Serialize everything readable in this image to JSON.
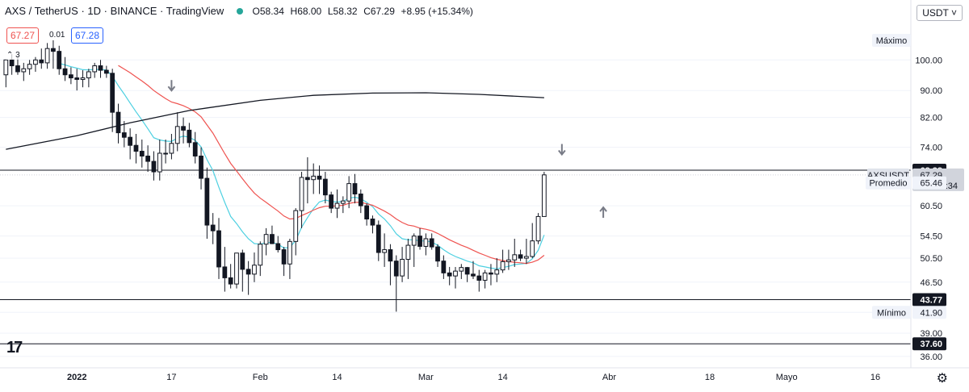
{
  "header": {
    "symbol": "AXS / TetherUS",
    "interval": "1D",
    "exchange": "BINANCE",
    "platform": "TradingView",
    "ohlc": {
      "o": "O58.34",
      "h": "H68.00",
      "l": "L58.32",
      "c": "C67.29",
      "chg": "+8.95 (+15.34%)"
    },
    "status_color": "#26a69a"
  },
  "bid": {
    "sell": "67.27",
    "spread": "0.01",
    "buy": "67.28"
  },
  "indicator_collapse": "3",
  "currency_button": "USDT",
  "gear_icon": "gear-icon",
  "logo_text": "17",
  "colors": {
    "up": "#131722",
    "down": "#131722",
    "ema_fast": "#4dd0e1",
    "ema_slow": "#ef5350",
    "sma_long": "#131722",
    "arrow": "#787b86"
  },
  "chart_data": {
    "type": "line",
    "y_scale": "log",
    "ylim": [
      35,
      115
    ],
    "y_ticks": [
      "100.00",
      "90.00",
      "82.00",
      "74.00",
      "60.50",
      "54.50",
      "50.50",
      "46.50",
      "41.90",
      "39.00",
      "36.00"
    ],
    "x_labels": [
      {
        "label": "2022",
        "date": "2022-01-01"
      },
      {
        "label": "17",
        "date": "2022-01-17"
      },
      {
        "label": "Feb",
        "date": "2022-02-01"
      },
      {
        "label": "14",
        "date": "2022-02-14"
      },
      {
        "label": "Mar",
        "date": "2022-03-01"
      },
      {
        "label": "14",
        "date": "2022-03-14"
      },
      {
        "label": "Abr",
        "date": "2022-04-01"
      },
      {
        "label": "18",
        "date": "2022-04-18"
      },
      {
        "label": "Mayo",
        "date": "2022-05-01"
      },
      {
        "label": "16",
        "date": "2022-05-16"
      }
    ],
    "x_range": [
      "2021-12-19",
      "2022-05-22"
    ],
    "candles": {
      "start": "2021-12-20",
      "o": [
        95.0,
        100.0,
        98.0,
        96.0,
        97.0,
        98.5,
        100.0,
        99.0,
        104.0,
        103.0,
        97.0,
        95.0,
        94.0,
        93.5,
        94.0,
        96.0,
        98.0,
        96.5,
        95.5,
        83.5,
        77.8,
        76.6,
        74.5,
        73.0,
        71.8,
        70.5,
        68.0,
        72.5,
        72.5,
        75.0,
        79.5,
        78.5,
        75.2,
        71.8,
        66.5,
        56.6,
        55.5,
        49.0,
        47.2,
        46.2,
        51.4,
        48.6,
        47.8,
        49.3,
        53.0,
        54.8,
        53.1,
        52.0,
        49.5,
        53.5,
        59.5,
        66.7,
        66.2,
        67.0,
        66.3,
        62.8,
        60.0,
        61.0,
        61.5,
        65.3,
        63.0,
        60.5,
        57.8,
        56.6,
        51.5,
        52.0,
        50.0,
        47.5,
        50.3,
        52.8,
        54.5,
        52.6,
        54.0,
        52.5,
        50.0,
        48.0,
        47.5,
        48.3,
        48.9,
        47.8,
        47.5,
        46.8,
        48.0,
        47.8,
        48.5,
        49.9,
        50.2,
        51.1,
        50.5,
        50.8,
        53.6,
        58.3
      ],
      "h": [
        99.0,
        102.0,
        101.0,
        99.0,
        100.0,
        101.0,
        104.0,
        106.0,
        107.0,
        105.0,
        101.0,
        97.5,
        97.0,
        96.5,
        97.0,
        99.0,
        100.0,
        98.0,
        97.0,
        86.0,
        81.0,
        79.0,
        77.5,
        76.0,
        74.5,
        73.0,
        76.0,
        76.0,
        77.5,
        83.5,
        82.0,
        80.5,
        78.0,
        74.0,
        69.0,
        59.0,
        58.0,
        52.5,
        49.5,
        51.0,
        52.0,
        50.0,
        51.5,
        53.5,
        56.0,
        56.5,
        54.5,
        52.5,
        54.0,
        60.0,
        68.0,
        71.5,
        70.0,
        69.5,
        68.0,
        63.5,
        64.0,
        62.5,
        67.0,
        67.5,
        64.0,
        61.0,
        58.5,
        57.5,
        55.0,
        53.0,
        51.0,
        52.5,
        54.0,
        55.0,
        56.0,
        55.0,
        55.0,
        53.0,
        51.0,
        49.0,
        49.0,
        49.5,
        49.0,
        50.0,
        48.5,
        48.5,
        49.5,
        50.5,
        52.0,
        52.0,
        54.0,
        52.0,
        54.0,
        57.0,
        59.0,
        68.0
      ],
      "l": [
        91.0,
        95.0,
        95.0,
        93.0,
        95.0,
        96.0,
        97.0,
        97.0,
        97.0,
        95.0,
        93.0,
        92.0,
        90.0,
        91.0,
        91.0,
        94.0,
        94.0,
        94.0,
        78.0,
        75.0,
        74.0,
        71.0,
        70.0,
        69.0,
        68.0,
        66.0,
        66.0,
        70.0,
        71.0,
        73.0,
        75.0,
        74.0,
        70.0,
        64.0,
        54.0,
        53.0,
        47.0,
        45.0,
        45.5,
        45.5,
        45.0,
        44.5,
        46.5,
        47.5,
        51.0,
        53.0,
        51.5,
        47.5,
        47.0,
        51.0,
        56.0,
        61.0,
        63.0,
        63.0,
        61.0,
        59.0,
        58.0,
        59.0,
        60.0,
        61.0,
        59.0,
        56.5,
        55.0,
        50.0,
        49.0,
        46.0,
        42.0,
        46.5,
        47.0,
        49.0,
        52.0,
        51.0,
        52.0,
        49.0,
        47.0,
        46.0,
        45.5,
        47.0,
        46.5,
        47.0,
        45.0,
        45.5,
        46.0,
        46.5,
        48.0,
        48.5,
        49.0,
        50.0,
        49.5,
        50.5,
        53.0,
        58.3
      ],
      "c": [
        100.0,
        98.0,
        96.0,
        97.0,
        98.5,
        100.0,
        99.0,
        104.0,
        103.0,
        97.0,
        95.0,
        94.0,
        93.5,
        94.0,
        96.0,
        98.0,
        96.5,
        95.5,
        83.5,
        77.8,
        76.6,
        74.5,
        73.0,
        71.8,
        70.5,
        68.0,
        72.5,
        72.5,
        75.0,
        79.5,
        78.5,
        75.2,
        71.8,
        66.5,
        56.6,
        55.5,
        49.0,
        47.2,
        46.2,
        51.4,
        48.6,
        47.8,
        49.3,
        53.0,
        54.8,
        53.1,
        52.0,
        49.5,
        53.5,
        59.5,
        66.7,
        66.2,
        67.0,
        66.3,
        62.8,
        60.0,
        61.0,
        61.5,
        65.3,
        63.0,
        60.5,
        57.8,
        56.6,
        51.5,
        52.0,
        50.0,
        47.5,
        50.3,
        52.8,
        54.5,
        52.6,
        54.0,
        52.5,
        50.0,
        48.0,
        47.5,
        48.3,
        48.9,
        47.8,
        47.5,
        46.8,
        48.0,
        47.8,
        48.5,
        49.9,
        50.2,
        51.1,
        50.5,
        50.8,
        53.6,
        58.3,
        67.29
      ]
    },
    "series": [
      {
        "type": "ma",
        "role": "fast",
        "values": [
          null,
          null,
          null,
          null,
          null,
          null,
          null,
          null,
          null,
          98.8,
          98.3,
          97.7,
          97.2,
          96.7,
          96.6,
          96.8,
          96.7,
          96.6,
          94.5,
          91.5,
          88.9,
          86.2,
          83.6,
          81.3,
          78.9,
          76.5,
          75.9,
          75.6,
          75.5,
          76.4,
          76.9,
          76.6,
          75.8,
          74.1,
          70.9,
          68.3,
          64.5,
          61.2,
          58.3,
          56.9,
          55.3,
          54.0,
          53.1,
          53.0,
          53.3,
          53.3,
          53.0,
          52.3,
          52.4,
          53.7,
          56.2,
          58.1,
          59.9,
          61.3,
          61.7,
          61.4,
          61.3,
          61.4,
          62.1,
          62.3,
          62.0,
          61.2,
          60.3,
          58.8,
          57.8,
          56.5,
          54.9,
          54.0,
          53.8,
          53.8,
          53.6,
          53.6,
          53.4,
          52.8,
          52.0,
          51.3,
          50.8,
          50.4,
          50.0,
          49.7,
          49.2,
          49.0,
          48.8,
          48.7,
          48.9,
          49.1,
          49.4,
          49.5,
          49.6,
          50.4,
          51.9,
          54.7
        ]
      },
      {
        "type": "ma",
        "role": "slow",
        "values": [
          null,
          null,
          null,
          null,
          null,
          null,
          null,
          null,
          null,
          null,
          null,
          null,
          null,
          null,
          null,
          null,
          null,
          null,
          null,
          98.1,
          96.9,
          95.7,
          94.3,
          93.0,
          91.6,
          90.0,
          88.7,
          87.5,
          86.5,
          86.0,
          85.4,
          84.6,
          83.6,
          82.2,
          79.9,
          77.7,
          75.0,
          72.4,
          70.0,
          68.2,
          66.4,
          64.7,
          63.2,
          62.1,
          61.2,
          60.3,
          59.4,
          58.4,
          57.8,
          57.9,
          58.5,
          59.0,
          59.6,
          60.1,
          60.4,
          60.4,
          60.5,
          60.6,
          61.0,
          61.2,
          61.2,
          60.9,
          60.6,
          60.0,
          59.4,
          58.7,
          57.8,
          57.1,
          56.6,
          56.4,
          56.0,
          55.8,
          55.5,
          55.0,
          54.4,
          53.8,
          53.3,
          52.8,
          52.4,
          51.9,
          51.4,
          51.0,
          50.6,
          50.3,
          50.1,
          49.9,
          49.8,
          49.7,
          49.6,
          49.8,
          50.2,
          51.0
        ]
      },
      {
        "type": "ma",
        "role": "long",
        "dates": [
          "2021-12-20",
          "2022-01-01",
          "2022-01-10",
          "2022-01-20",
          "2022-02-01",
          "2022-02-10",
          "2022-02-20",
          "2022-03-01",
          "2022-03-10",
          "2022-03-21"
        ],
        "values": [
          73.5,
          77.0,
          80.5,
          84.0,
          87.0,
          88.5,
          89.2,
          89.3,
          88.8,
          87.8
        ]
      }
    ],
    "levels": [
      {
        "value": 68.38,
        "label": "68.38",
        "style": "black"
      },
      {
        "value": 43.77,
        "label": "43.77",
        "style": "black"
      },
      {
        "value": 37.6,
        "label": "37.60",
        "style": "black"
      }
    ],
    "price_labels": {
      "symbol": {
        "name": "AXSUSDT",
        "value": "67.29",
        "countdown": "08:13:34"
      },
      "average": {
        "name": "Promedio",
        "value": "65.46",
        "price": 65.46
      },
      "max": {
        "name": "Máximo",
        "price": 107.0
      },
      "min": {
        "name": "Mínimo",
        "value": "41.90",
        "price": 41.9
      }
    },
    "arrows": [
      {
        "dir": "down",
        "date": "2022-01-17",
        "price": 91
      },
      {
        "dir": "down",
        "date": "2022-03-24",
        "price": 73
      },
      {
        "dir": "up",
        "date": "2022-03-31",
        "price": 59.5
      }
    ]
  }
}
